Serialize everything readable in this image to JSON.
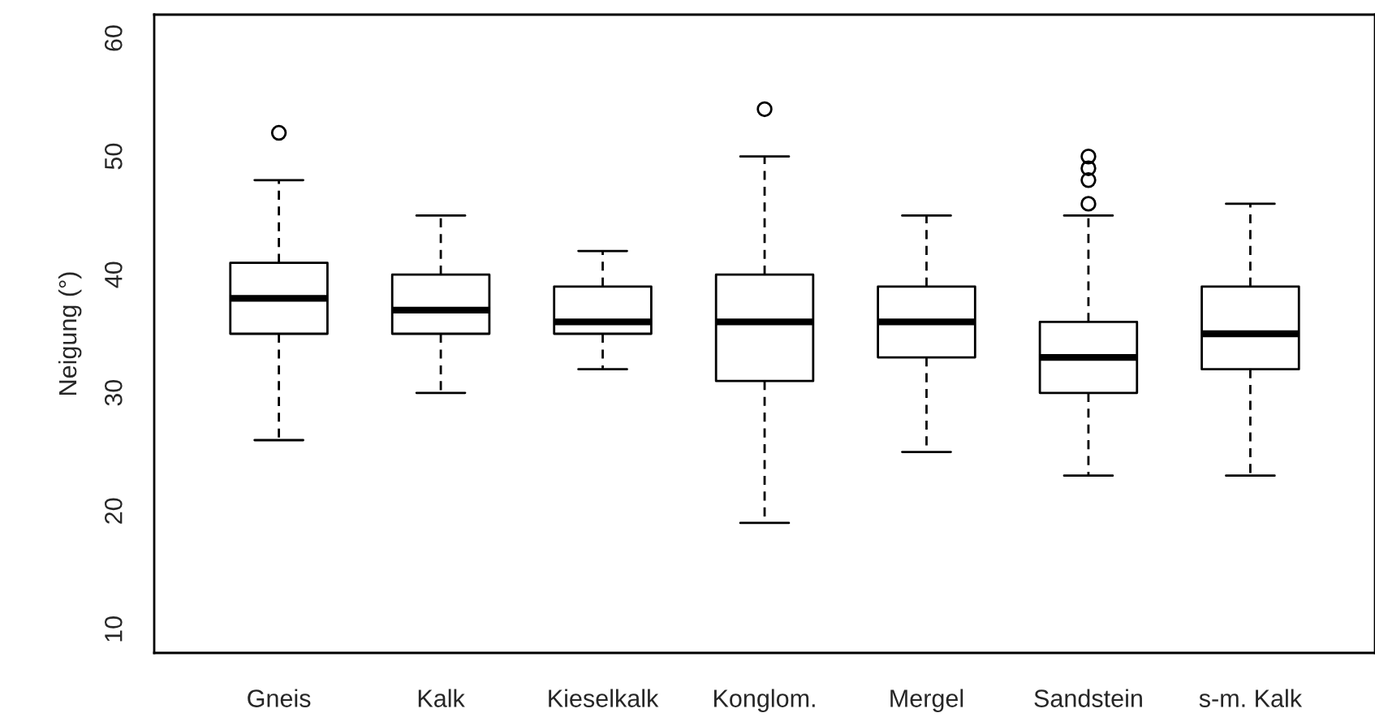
{
  "chart_data": {
    "type": "box",
    "ylabel": "Neigung (°)",
    "categories": [
      "Gneis",
      "Kalk",
      "Kieselkalk",
      "Konglom.",
      "Mergel",
      "Sandstein",
      "s-m. Kalk"
    ],
    "boxes": [
      {
        "low": 26,
        "q1": 35,
        "median": 38,
        "q3": 41,
        "high": 48,
        "outliers": [
          52
        ]
      },
      {
        "low": 30,
        "q1": 35,
        "median": 37,
        "q3": 40,
        "high": 45
      },
      {
        "low": 32,
        "q1": 35,
        "median": 36,
        "q3": 39,
        "high": 42
      },
      {
        "low": 19,
        "q1": 31,
        "median": 36,
        "q3": 40,
        "high": 50,
        "outliers": [
          54
        ]
      },
      {
        "low": 25,
        "q1": 33,
        "median": 36,
        "q3": 39,
        "high": 45
      },
      {
        "low": 23,
        "q1": 30,
        "median": 33,
        "q3": 36,
        "high": 45,
        "outliers": [
          46,
          48,
          49,
          50
        ]
      },
      {
        "low": 23,
        "q1": 32,
        "median": 35,
        "q3": 39,
        "high": 46
      }
    ],
    "ylim": [
      8,
      62
    ],
    "yticks": [
      10,
      20,
      30,
      40,
      50,
      60
    ],
    "grid": false
  }
}
